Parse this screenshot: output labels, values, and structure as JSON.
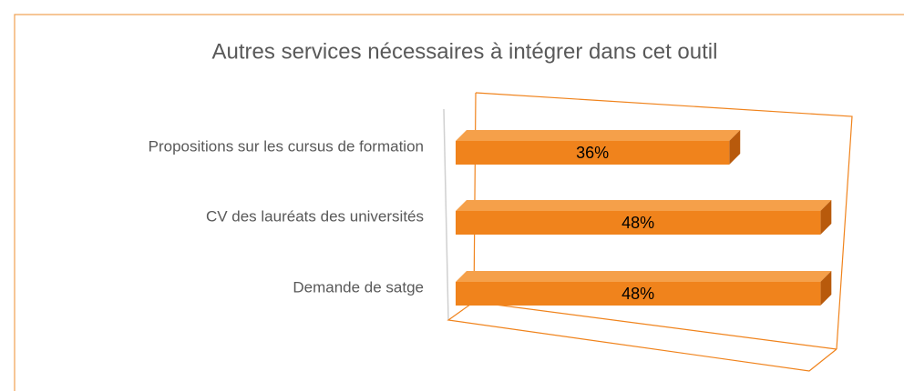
{
  "chart_data": {
    "type": "bar3d",
    "title": "Autres services nécessaires à intégrer dans cet outil",
    "categories": [
      "Propositions sur les cursus de formation",
      "CV des lauréats des universités",
      "Demande de satge"
    ],
    "values": [
      36,
      48,
      48
    ],
    "value_labels": [
      "36%",
      "48%",
      "48%"
    ],
    "color": "#f0831c",
    "xlim": [
      0,
      50
    ]
  }
}
